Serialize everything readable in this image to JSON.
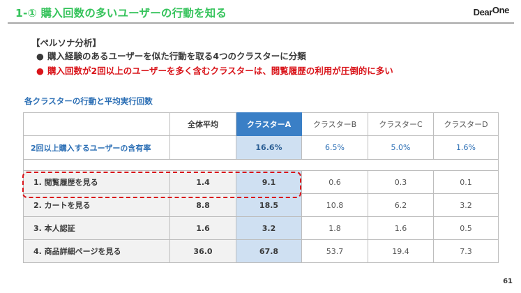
{
  "header": {
    "title": "1-① 購入回数の多いユーザーの行動を知る",
    "logo": {
      "main": "Dear",
      "accent": "One"
    }
  },
  "persona": {
    "heading": "【ペルソナ分析】",
    "bullets": [
      {
        "text": "購入経験のあるユーザーを似た行動を取る4つのクラスターに分類",
        "emphasis": false
      },
      {
        "text": "購入回数が2回以上のユーザーを多く含むクラスターは、閲覧履歴の利用が圧倒的に多い",
        "emphasis": true
      }
    ],
    "bullet_glyph": "●"
  },
  "table": {
    "caption": "各クラスターの行動と平均実行回数",
    "columns": [
      "",
      "全体平均",
      "クラスターA",
      "クラスターB",
      "クラスターC",
      "クラスターD"
    ],
    "highlight_column": "クラスターA",
    "rate_row": {
      "label": "2回以上購入するユーザーの含有率",
      "values": [
        "",
        "16.6%",
        "6.5%",
        "5.0%",
        "1.6%"
      ]
    },
    "rows": [
      {
        "label": "1. 閲覧履歴を見る",
        "values": [
          "1.4",
          "9.1",
          "0.6",
          "0.3",
          "0.1"
        ],
        "highlighted": true
      },
      {
        "label": "2. カートを見る",
        "values": [
          "8.8",
          "18.5",
          "10.8",
          "6.2",
          "3.2"
        ],
        "highlighted": false
      },
      {
        "label": "3. 本人認証",
        "values": [
          "1.6",
          "3.2",
          "1.8",
          "1.6",
          "0.5"
        ],
        "highlighted": false
      },
      {
        "label": "4. 商品詳細ページを見る",
        "values": [
          "36.0",
          "67.8",
          "53.7",
          "19.4",
          "7.3"
        ],
        "highlighted": false
      }
    ]
  },
  "colors": {
    "title_green": "#35c35b",
    "emphasis_red": "#d9141a",
    "accent_blue": "#3a7fc6",
    "highlight_light_blue": "#cfe0f2",
    "caption_blue": "#2c6fb5"
  },
  "footer": {
    "page_number": "61"
  }
}
